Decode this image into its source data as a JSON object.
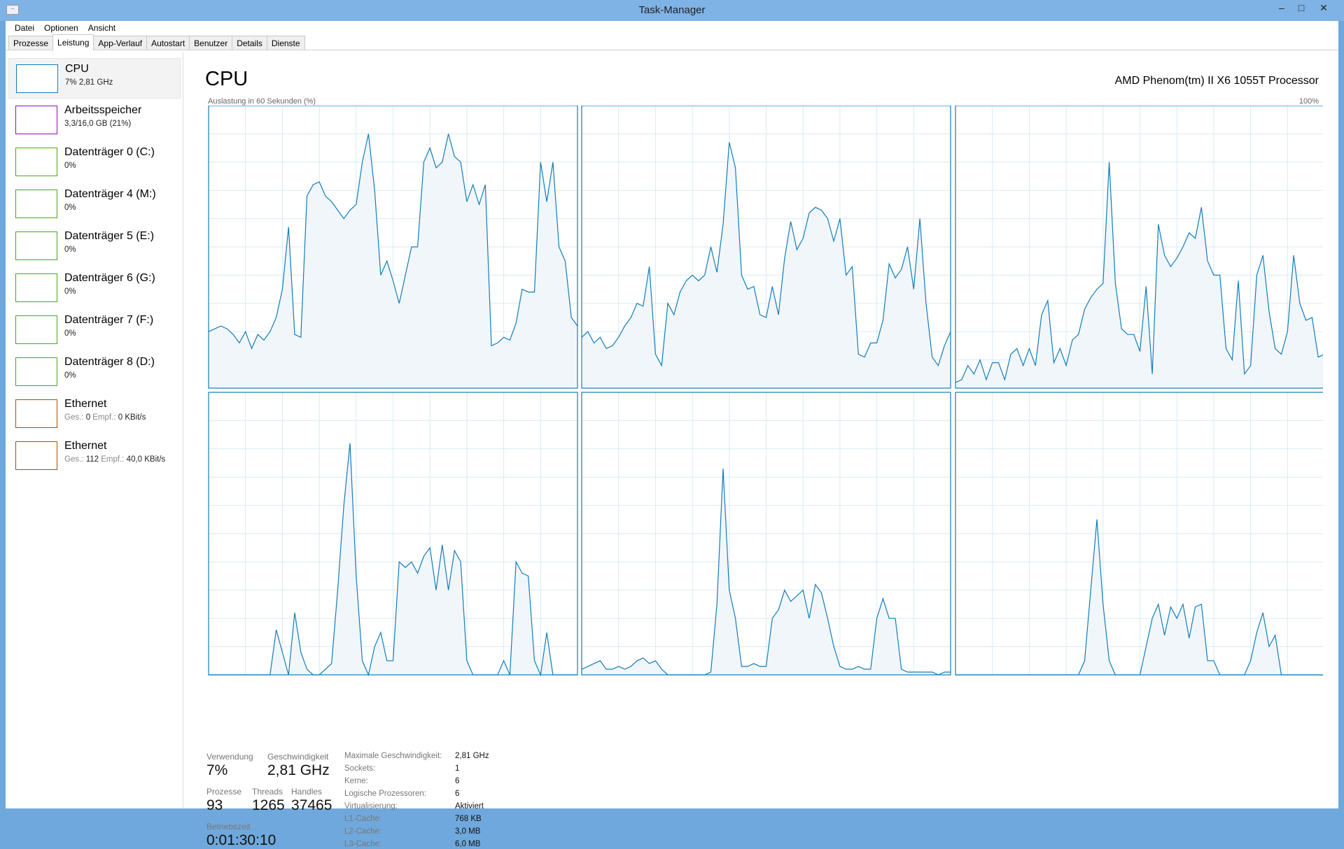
{
  "window": {
    "title": "Task-Manager",
    "controls": [
      "minimize",
      "maximize",
      "close"
    ]
  },
  "menu": [
    "Datei",
    "Optionen",
    "Ansicht"
  ],
  "tabs": [
    {
      "label": "Prozesse"
    },
    {
      "label": "Leistung",
      "active": true
    },
    {
      "label": "App-Verlauf"
    },
    {
      "label": "Autostart"
    },
    {
      "label": "Benutzer"
    },
    {
      "label": "Details"
    },
    {
      "label": "Dienste"
    }
  ],
  "sidebar": [
    {
      "name": "CPU",
      "sub": "7%  2,81 GHz",
      "color": "#117dbb",
      "selected": true
    },
    {
      "name": "Arbeitsspeicher",
      "sub": "3,3/16,0 GB (21%)",
      "color": "#8b12ae"
    },
    {
      "name": "Datenträger 0 (C:)",
      "sub": "0%",
      "color": "#4da60c"
    },
    {
      "name": "Datenträger 4 (M:)",
      "sub": "0%",
      "color": "#4da60c"
    },
    {
      "name": "Datenträger 5 (E:)",
      "sub": "0%",
      "color": "#4da60c"
    },
    {
      "name": "Datenträger 6 (G:)",
      "sub": "0%",
      "color": "#4da60c"
    },
    {
      "name": "Datenträger 7 (F:)",
      "sub": "0%",
      "color": "#4da60c"
    },
    {
      "name": "Datenträger 8 (D:)",
      "sub": "0%",
      "color": "#4da60c"
    },
    {
      "name": "Ethernet",
      "sub_send_label": "Ges.:",
      "sub_send": "0",
      "sub_recv_label": "Empf.:",
      "sub_recv": "0 KBit/s",
      "color": "#a74f01"
    },
    {
      "name": "Ethernet",
      "sub_send_label": "Ges.:",
      "sub_send": "112",
      "sub_recv_label": "Empf.:",
      "sub_recv": "40,0 KBit/s",
      "color": "#a74f01"
    }
  ],
  "main": {
    "title": "CPU",
    "model": "AMD Phenom(tm) II X6 1055T Processor",
    "axis_label": "Auslastung in 60 Sekunden (%)",
    "axis_max": "100%",
    "stats": {
      "usage_label": "Verwendung",
      "usage": "7%",
      "speed_label": "Geschwindigkeit",
      "speed": "2,81 GHz",
      "processes_label": "Prozesse",
      "processes": "93",
      "threads_label": "Threads",
      "threads": "1265",
      "handles_label": "Handles",
      "handles": "37465",
      "uptime_label": "Betriebszeit",
      "uptime": "0:01:30:10"
    },
    "details": [
      {
        "k": "Maximale Geschwindigkeit:",
        "v": "2,81 GHz"
      },
      {
        "k": "Sockets:",
        "v": "1"
      },
      {
        "k": "Kerne:",
        "v": "6"
      },
      {
        "k": "Logische Prozessoren:",
        "v": "6"
      },
      {
        "k": "Virtualisierung:",
        "v": "Aktiviert"
      },
      {
        "k": "L1-Cache:",
        "v": "768 KB"
      },
      {
        "k": "L2-Cache:",
        "v": "3,0 MB"
      },
      {
        "k": "L3-Cache:",
        "v": "6,0 MB"
      }
    ]
  },
  "chart_data": {
    "type": "area",
    "ylim": [
      0,
      100
    ],
    "xlim_seconds": 60,
    "grid": true,
    "line_color": "#117dbb",
    "fill_color": "#f1f6fa",
    "series": [
      {
        "values": [
          20,
          21,
          22,
          21,
          19,
          16,
          20,
          14,
          19,
          17,
          20,
          25,
          35,
          57,
          19,
          18,
          68,
          72,
          73,
          68,
          66,
          63,
          60,
          63,
          65,
          80,
          90,
          70,
          40,
          45,
          38,
          30,
          40,
          50,
          50,
          80,
          85,
          78,
          80,
          90,
          82,
          80,
          66,
          72,
          65,
          72,
          15,
          16,
          18,
          17,
          23,
          35,
          34,
          34,
          80,
          66,
          80,
          50,
          45,
          25,
          22
        ]
      },
      {
        "values": [
          18,
          20,
          16,
          18,
          14,
          15,
          18,
          22,
          25,
          30,
          29,
          43,
          12,
          8,
          30,
          26,
          34,
          38,
          40,
          38,
          40,
          50,
          41,
          58,
          87,
          78,
          40,
          35,
          36,
          26,
          25,
          36,
          26,
          46,
          59,
          49,
          53,
          62,
          64,
          63,
          60,
          52,
          60,
          40,
          43,
          12,
          11,
          16,
          16,
          24,
          44,
          39,
          42,
          50,
          35,
          60,
          30,
          11,
          8,
          15,
          20
        ]
      },
      {
        "values": [
          2,
          3,
          8,
          5,
          10,
          3,
          9,
          9,
          3,
          12,
          14,
          8,
          14,
          8,
          26,
          31,
          9,
          14,
          8,
          17,
          19,
          28,
          32,
          35,
          37,
          80,
          37,
          21,
          19,
          19,
          13,
          36,
          5,
          58,
          47,
          43,
          46,
          50,
          55,
          53,
          64,
          45,
          40,
          40,
          14,
          10,
          38,
          5,
          8,
          40,
          47,
          27,
          14,
          12,
          20,
          47,
          30,
          24,
          25,
          11,
          12
        ]
      },
      {
        "values": [
          0,
          0,
          0,
          0,
          0,
          0,
          0,
          0,
          0,
          0,
          0,
          16,
          8,
          0,
          22,
          8,
          2,
          0,
          0,
          2,
          4,
          30,
          60,
          82,
          35,
          5,
          0,
          10,
          15,
          5,
          5,
          40,
          38,
          40,
          36,
          42,
          45,
          30,
          46,
          30,
          44,
          40,
          5,
          0,
          0,
          0,
          0,
          0,
          5,
          0,
          40,
          36,
          35,
          5,
          0,
          15,
          0,
          0,
          0,
          0,
          0
        ]
      },
      {
        "values": [
          2,
          3,
          4,
          5,
          2,
          2,
          3,
          2,
          3,
          5,
          6,
          4,
          5,
          2,
          0,
          0,
          0,
          0,
          0,
          0,
          0,
          1,
          25,
          73,
          30,
          20,
          3,
          3,
          4,
          3,
          3,
          20,
          23,
          30,
          26,
          28,
          30,
          20,
          32,
          29,
          20,
          10,
          3,
          2,
          2,
          3,
          2,
          2,
          20,
          27,
          20,
          20,
          2,
          1,
          1,
          1,
          1,
          1,
          0,
          1,
          1
        ]
      },
      {
        "values": [
          0,
          0,
          0,
          0,
          0,
          0,
          0,
          0,
          0,
          0,
          0,
          0,
          0,
          0,
          0,
          0,
          0,
          0,
          0,
          0,
          0,
          5,
          30,
          55,
          25,
          5,
          0,
          0,
          0,
          0,
          0,
          10,
          20,
          25,
          14,
          24,
          20,
          25,
          13,
          24,
          25,
          5,
          5,
          0,
          0,
          0,
          0,
          0,
          5,
          15,
          22,
          10,
          14,
          0,
          0,
          0,
          0,
          0,
          0,
          0,
          0
        ]
      }
    ]
  }
}
